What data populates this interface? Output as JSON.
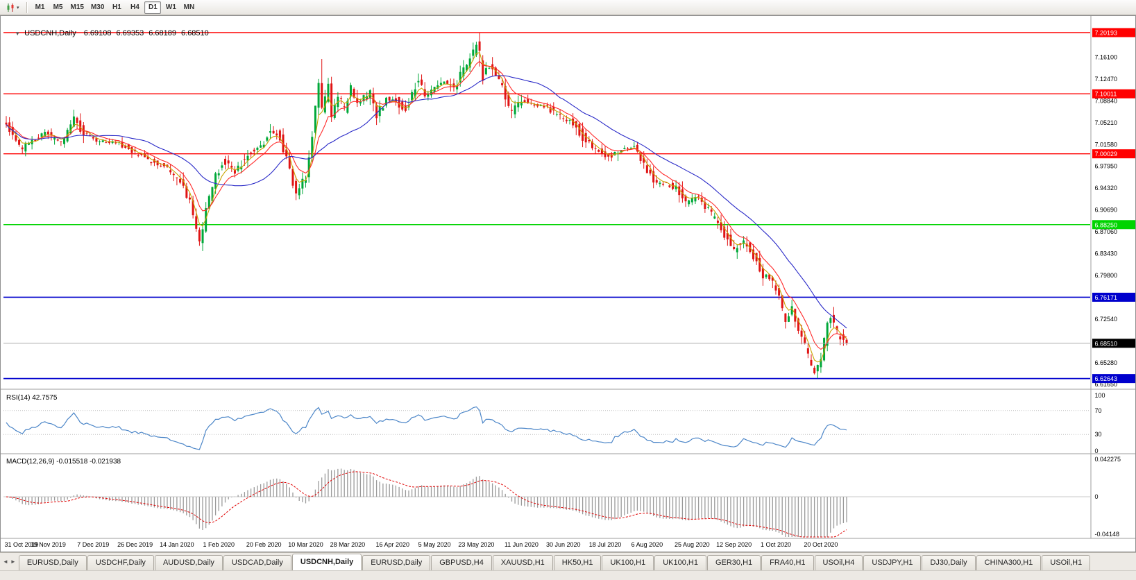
{
  "toolbar": {
    "chart_menu_caret": "▾",
    "timeframes": [
      "M1",
      "M5",
      "M15",
      "M30",
      "H1",
      "H4",
      "D1",
      "W1",
      "MN"
    ],
    "active_timeframe": "D1"
  },
  "chart": {
    "collapse_icon": "▼",
    "symbol_title": "USDCNH,Daily",
    "ohlc": {
      "open": "6.69108",
      "high": "6.69353",
      "low": "6.68189",
      "close": "6.68510"
    }
  },
  "chart_data": {
    "type": "candlestick",
    "symbol": "USDCNH",
    "period": "Daily",
    "bars": 262,
    "up_color": "#00A839",
    "down_color": "#E01414",
    "y_min": 6.611,
    "y_max": 7.225,
    "y_ticks": [
      7.161,
      7.1247,
      7.0884,
      7.0521,
      7.0158,
      6.9795,
      6.9432,
      6.9069,
      6.8706,
      6.8343,
      6.798,
      6.7617,
      6.7254,
      6.6891,
      6.6528,
      6.6165
    ],
    "x_labels": [
      {
        "text": "31 Oct 2019",
        "bar": 0
      },
      {
        "text": "19 Nov 2019",
        "bar": 13
      },
      {
        "text": "7 Dec 2019",
        "bar": 27
      },
      {
        "text": "26 Dec 2019",
        "bar": 40
      },
      {
        "text": "14 Jan 2020",
        "bar": 53
      },
      {
        "text": "1 Feb 2020",
        "bar": 66
      },
      {
        "text": "20 Feb 2020",
        "bar": 80
      },
      {
        "text": "10 Mar 2020",
        "bar": 93
      },
      {
        "text": "28 Mar 2020",
        "bar": 106
      },
      {
        "text": "16 Apr 2020",
        "bar": 120
      },
      {
        "text": "5 May 2020",
        "bar": 133
      },
      {
        "text": "23 May 2020",
        "bar": 146
      },
      {
        "text": "11 Jun 2020",
        "bar": 160
      },
      {
        "text": "30 Jun 2020",
        "bar": 173
      },
      {
        "text": "18 Jul 2020",
        "bar": 186
      },
      {
        "text": "6 Aug 2020",
        "bar": 199
      },
      {
        "text": "25 Aug 2020",
        "bar": 213
      },
      {
        "text": "12 Sep 2020",
        "bar": 226
      },
      {
        "text": "1 Oct 2020",
        "bar": 239
      },
      {
        "text": "20 Oct 2020",
        "bar": 253
      }
    ],
    "price_anchors": [
      [
        0,
        7.058
      ],
      [
        3,
        7.03
      ],
      [
        6,
        7.008
      ],
      [
        9,
        7.022
      ],
      [
        13,
        7.036
      ],
      [
        18,
        7.018
      ],
      [
        22,
        7.056
      ],
      [
        25,
        7.036
      ],
      [
        30,
        7.022
      ],
      [
        36,
        7.018
      ],
      [
        41,
        7.002
      ],
      [
        46,
        6.988
      ],
      [
        51,
        6.978
      ],
      [
        55,
        6.952
      ],
      [
        58,
        6.922
      ],
      [
        60,
        6.872
      ],
      [
        61,
        6.848
      ],
      [
        63,
        6.905
      ],
      [
        65,
        6.948
      ],
      [
        68,
        6.988
      ],
      [
        72,
        6.972
      ],
      [
        76,
        7.0
      ],
      [
        81,
        7.018
      ],
      [
        83,
        7.042
      ],
      [
        86,
        7.028
      ],
      [
        89,
        6.972
      ],
      [
        91,
        6.936
      ],
      [
        94,
        6.962
      ],
      [
        96,
        7.03
      ],
      [
        98,
        7.125
      ],
      [
        99,
        7.07
      ],
      [
        101,
        7.11
      ],
      [
        102,
        7.06
      ],
      [
        104,
        7.1
      ],
      [
        106,
        7.072
      ],
      [
        108,
        7.112
      ],
      [
        110,
        7.088
      ],
      [
        114,
        7.1
      ],
      [
        116,
        7.062
      ],
      [
        119,
        7.093
      ],
      [
        122,
        7.088
      ],
      [
        125,
        7.072
      ],
      [
        129,
        7.128
      ],
      [
        131,
        7.098
      ],
      [
        134,
        7.108
      ],
      [
        137,
        7.122
      ],
      [
        140,
        7.108
      ],
      [
        143,
        7.142
      ],
      [
        146,
        7.168
      ],
      [
        147,
        7.185
      ],
      [
        149,
        7.128
      ],
      [
        151,
        7.148
      ],
      [
        155,
        7.108
      ],
      [
        158,
        7.065
      ],
      [
        161,
        7.092
      ],
      [
        164,
        7.082
      ],
      [
        169,
        7.078
      ],
      [
        173,
        7.062
      ],
      [
        177,
        7.052
      ],
      [
        181,
        7.02
      ],
      [
        186,
        7.002
      ],
      [
        189,
        6.992
      ],
      [
        192,
        7.008
      ],
      [
        196,
        7.012
      ],
      [
        199,
        6.982
      ],
      [
        203,
        6.948
      ],
      [
        206,
        6.952
      ],
      [
        209,
        6.942
      ],
      [
        212,
        6.918
      ],
      [
        216,
        6.928
      ],
      [
        220,
        6.898
      ],
      [
        224,
        6.868
      ],
      [
        227,
        6.842
      ],
      [
        230,
        6.858
      ],
      [
        233,
        6.832
      ],
      [
        236,
        6.8
      ],
      [
        239,
        6.788
      ],
      [
        241,
        6.758
      ],
      [
        243,
        6.718
      ],
      [
        245,
        6.742
      ],
      [
        247,
        6.708
      ],
      [
        249,
        6.678
      ],
      [
        251,
        6.648
      ],
      [
        252,
        6.636
      ],
      [
        254,
        6.658
      ],
      [
        256,
        6.718
      ],
      [
        257,
        6.734
      ],
      [
        259,
        6.7
      ],
      [
        261,
        6.685
      ],
      [
        262,
        6.685
      ]
    ],
    "key_points": {
      "peak_bar": 147,
      "peak_high": 7.2019,
      "spike_bar": 98,
      "spike_high": 7.158,
      "jan_low_bar": 61,
      "jan_low": 6.8385,
      "oct_low_bar": 252,
      "oct_low": 6.627
    },
    "last_candle": {
      "open": 6.69108,
      "high": 6.69353,
      "low": 6.68189,
      "close": 6.6851
    },
    "horizontal_lines": [
      {
        "price": 7.20193,
        "label": "7.20193",
        "color": "#FF0000",
        "width": 1.4
      },
      {
        "price": 7.10011,
        "label": "7.10011",
        "color": "#FF0000",
        "width": 1.4
      },
      {
        "price": 7.00029,
        "label": "7.00029",
        "color": "#FF0000",
        "width": 1.4
      },
      {
        "price": 6.8825,
        "label": "6.88250",
        "color": "#00D400",
        "width": 1.6
      },
      {
        "price": 6.76171,
        "label": "6.76171",
        "color": "#0000CD",
        "width": 1.6
      },
      {
        "price": 6.62643,
        "label": "6.62643",
        "color": "#0000CD",
        "width": 1.8
      }
    ],
    "bid_line": {
      "price": 6.6851,
      "label": "6.68510",
      "box_color": "#000000",
      "line_color": "#ABABAB"
    },
    "moving_averages": [
      {
        "period": 4,
        "type": "ema",
        "color": "#C8A400",
        "name": "fast-yellow"
      },
      {
        "period": 9,
        "type": "ema",
        "color": "#FF2A2A",
        "name": "medium-red"
      },
      {
        "period": 25,
        "type": "sma",
        "color": "#2A2AC8",
        "name": "slow-blue"
      }
    ],
    "rsi": {
      "period": 14,
      "value": 42.7575,
      "levels": [
        70,
        30
      ],
      "scale": [
        100,
        70,
        30,
        0
      ],
      "color": "#4C86C8"
    },
    "macd": {
      "fast": 12,
      "slow": 26,
      "signal": 9,
      "macd_value": -0.015518,
      "signal_value": -0.021938,
      "scale_max": 0.042275,
      "scale_min": -0.04148,
      "scale_max_label": "0.042275",
      "zero_label": "0",
      "scale_min_label": "-0.04148",
      "hist_color": "#9A9A9A",
      "signal_color": "#E00000"
    }
  },
  "rsi_panel": {
    "label": "RSI(14) 42.7575"
  },
  "macd_panel": {
    "label": "MACD(12,26,9) -0.015518 -0.021938"
  },
  "tabs": {
    "nav_left": "◄",
    "nav_right": "►",
    "items": [
      "EURUSD,Daily",
      "USDCHF,Daily",
      "AUDUSD,Daily",
      "USDCAD,Daily",
      "USDCNH,Daily",
      "EURUSD,Daily",
      "GBPUSD,H4",
      "XAUUSD,H1",
      "HK50,H1",
      "UK100,H1",
      "UK100,H1",
      "GER30,H1",
      "FRA40,H1",
      "USOil,H4",
      "USDJPY,H1",
      "DJ30,Daily",
      "CHINA300,H1",
      "USOil,H1"
    ],
    "active_index": 4
  }
}
